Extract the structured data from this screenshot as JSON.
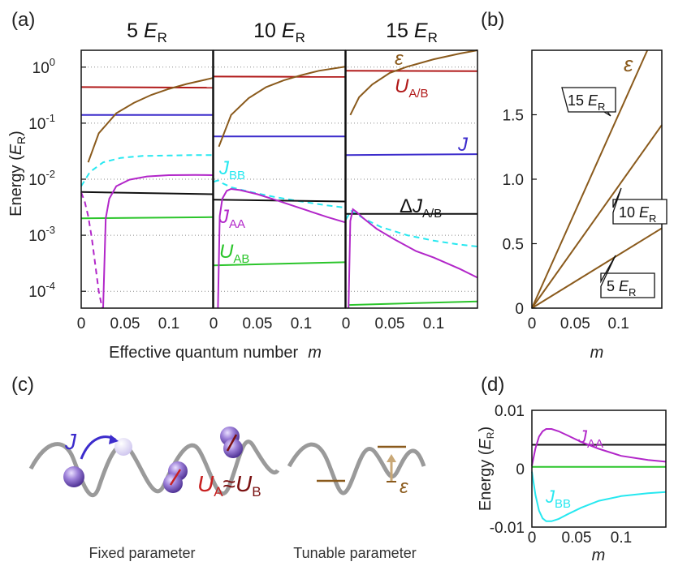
{
  "panel_labels": {
    "a": "(a)",
    "b": "(b)",
    "c": "(c)",
    "d": "(d)"
  },
  "chart_data": [
    {
      "id": "a",
      "type": "line",
      "ylabel": "Energy (E_R)",
      "ylabel_parts": [
        "Energy (",
        "E",
        "R",
        ")"
      ],
      "xlabel": "Effective quantum number  m",
      "xlabel_parts": [
        "Effective quantum number",
        "m"
      ],
      "yscale": "log",
      "ylim": [
        5e-05,
        2
      ],
      "xlim": [
        0,
        0.15
      ],
      "grid": "dotted horizontal",
      "ytick_labels": [
        {
          "mant": "10",
          "exp": "0",
          "v": 1
        },
        {
          "mant": "10",
          "exp": "-1",
          "v": 0.1
        },
        {
          "mant": "10",
          "exp": "-2",
          "v": 0.01
        },
        {
          "mant": "10",
          "exp": "-3",
          "v": 0.001
        },
        {
          "mant": "10",
          "exp": "-4",
          "v": 0.0001
        }
      ],
      "xticks": [
        {
          "label": "0",
          "v": 0
        },
        {
          "label": "0.05",
          "v": 0.05
        },
        {
          "label": "0.1",
          "v": 0.1
        }
      ],
      "columns": [
        {
          "title_num": "5",
          "title_var": "E",
          "title_sub": "R",
          "series": [
            {
              "key": "U_AB",
              "color": "#b11a1a",
              "x": [
                0,
                0.15
              ],
              "y": [
                0.44,
                0.43
              ]
            },
            {
              "key": "J",
              "color": "#3c2ccc",
              "x": [
                0,
                0.15
              ],
              "y": [
                0.14,
                0.14
              ]
            },
            {
              "key": "eps",
              "color": "#8a5a1c",
              "x": [
                0.008,
                0.02,
                0.04,
                0.06,
                0.08,
                0.1,
                0.12,
                0.15
              ],
              "y": [
                0.02,
                0.066,
                0.15,
                0.23,
                0.32,
                0.41,
                0.5,
                0.64
              ]
            },
            {
              "key": "J_BB",
              "color": "#27e8f0",
              "dash": true,
              "x": [
                0,
                0.01,
                0.025,
                0.045,
                0.07,
                0.1,
                0.13,
                0.15
              ],
              "y": [
                0.0075,
                0.0135,
                0.02,
                0.024,
                0.026,
                0.0265,
                0.027,
                0.027
              ]
            },
            {
              "key": "DJ",
              "color": "#111111",
              "x": [
                0,
                0.15
              ],
              "y": [
                0.0059,
                0.0054
              ]
            },
            {
              "key": "U_AB2",
              "color": "#2bc52b",
              "x": [
                0,
                0.15
              ],
              "y": [
                0.002,
                0.0021
              ]
            },
            {
              "key": "J_AA_dash",
              "color": "#b227c9",
              "dash": true,
              "x": [
                0,
                0.004,
                0.008,
                0.012,
                0.016,
                0.02,
                0.024
              ],
              "y": [
                0.0058,
                0.004,
                0.0022,
                0.0009,
                0.0003,
                0.0001,
                4e-05
              ]
            },
            {
              "key": "J_AA",
              "color": "#b227c9",
              "x": [
                0.025,
                0.028,
                0.032,
                0.04,
                0.055,
                0.075,
                0.1,
                0.13,
                0.15
              ],
              "y": [
                4e-05,
                0.002,
                0.0045,
                0.0075,
                0.0098,
                0.0112,
                0.0118,
                0.0119,
                0.0118
              ]
            }
          ]
        },
        {
          "title_num": "10",
          "title_var": "E",
          "title_sub": "R",
          "series": [
            {
              "key": "U_AB",
              "color": "#b11a1a",
              "x": [
                0,
                0.15
              ],
              "y": [
                0.68,
                0.67
              ]
            },
            {
              "key": "J",
              "color": "#3c2ccc",
              "x": [
                0,
                0.15
              ],
              "y": [
                0.058,
                0.058
              ]
            },
            {
              "key": "eps",
              "color": "#8a5a1c",
              "x": [
                0.006,
                0.02,
                0.04,
                0.06,
                0.08,
                0.1,
                0.12,
                0.15
              ],
              "y": [
                0.038,
                0.14,
                0.28,
                0.44,
                0.58,
                0.72,
                0.86,
                1.02
              ]
            },
            {
              "key": "J_BB",
              "color": "#27e8f0",
              "dash": true,
              "x": [
                0,
                0.005,
                0.01,
                0.02,
                0.04,
                0.07,
                0.1,
                0.13,
                0.15
              ],
              "y": [
                0.009,
                0.0095,
                0.0085,
                0.0072,
                0.006,
                0.0048,
                0.004,
                0.0034,
                0.0031
              ]
            },
            {
              "key": "DJ",
              "color": "#111111",
              "x": [
                0,
                0.15
              ],
              "y": [
                0.0043,
                0.004
              ]
            },
            {
              "key": "U_AB2",
              "color": "#2bc52b",
              "x": [
                0,
                0.15
              ],
              "y": [
                0.00029,
                0.00033
              ]
            },
            {
              "key": "J_AA",
              "color": "#b227c9",
              "x": [
                0.005,
                0.007,
                0.01,
                0.015,
                0.02,
                0.03,
                0.05,
                0.07,
                0.1,
                0.13,
                0.15
              ],
              "y": [
                4e-05,
                0.0022,
                0.0045,
                0.0062,
                0.0067,
                0.0064,
                0.0054,
                0.0043,
                0.003,
                0.0021,
                0.0017
              ]
            }
          ]
        },
        {
          "title_num": "15",
          "title_var": "E",
          "title_sub": "R",
          "series": [
            {
              "key": "U_AB",
              "color": "#b11a1a",
              "x": [
                0,
                0.15
              ],
              "y": [
                0.86,
                0.85
              ]
            },
            {
              "key": "J",
              "color": "#3c2ccc",
              "x": [
                0,
                0.15
              ],
              "y": [
                0.027,
                0.028
              ]
            },
            {
              "key": "eps",
              "color": "#8a5a1c",
              "x": [
                0.005,
                0.015,
                0.03,
                0.05,
                0.07,
                0.1,
                0.13,
                0.15
              ],
              "y": [
                0.14,
                0.29,
                0.49,
                0.79,
                1.02,
                1.38,
                1.75,
                2.0
              ]
            },
            {
              "key": "J_BB",
              "color": "#27e8f0",
              "dash": true,
              "x": [
                0,
                0.003,
                0.006,
                0.01,
                0.02,
                0.04,
                0.07,
                0.1,
                0.13,
                0.15
              ],
              "y": [
                0.0019,
                0.0023,
                0.0027,
                0.0025,
                0.002,
                0.0014,
                0.001,
                0.0008,
                0.00068,
                0.00063
              ]
            },
            {
              "key": "DJ",
              "color": "#111111",
              "x": [
                0,
                0.15
              ],
              "y": [
                0.0024,
                0.0024
              ]
            },
            {
              "key": "U_AB2",
              "color": "#2bc52b",
              "x": [
                0.003,
                0.15
              ],
              "y": [
                5.7e-05,
                6.6e-05
              ]
            },
            {
              "key": "J_AA",
              "color": "#b227c9",
              "x": [
                0.003,
                0.005,
                0.008,
                0.012,
                0.02,
                0.035,
                0.055,
                0.08,
                0.1,
                0.13,
                0.15
              ],
              "y": [
                5e-05,
                0.0018,
                0.0029,
                0.0026,
                0.002,
                0.0013,
                0.00085,
                0.00052,
                0.0004,
                0.00025,
                0.000175
              ]
            }
          ]
        }
      ],
      "series_labels": [
        {
          "key": "eps",
          "text": "ε",
          "color": "#8a5a1c"
        },
        {
          "key": "U",
          "text": "U",
          "sub": "A/B",
          "color": "#b11a1a"
        },
        {
          "key": "J",
          "text": "J",
          "color": "#3c2ccc"
        },
        {
          "key": "DJ",
          "text": "ΔJ",
          "sub": "A/B",
          "color": "#111111"
        },
        {
          "key": "JBB",
          "text": "J",
          "sub": "BB",
          "color": "#27e8f0"
        },
        {
          "key": "JAA",
          "text": "J",
          "sub": "AA",
          "color": "#b227c9"
        },
        {
          "key": "UAB",
          "text": "U",
          "sub": "AB",
          "color": "#2bc52b"
        }
      ]
    },
    {
      "id": "b",
      "type": "line",
      "xlabel": "m",
      "xlim": [
        0,
        0.15
      ],
      "ylim": [
        0,
        2.0
      ],
      "yticks": [
        {
          "label": "0",
          "v": 0
        },
        {
          "label": "0.5",
          "v": 0.5
        },
        {
          "label": "1.0",
          "v": 1.0
        },
        {
          "label": "1.5",
          "v": 1.5
        }
      ],
      "xticks": [
        {
          "label": "0",
          "v": 0
        },
        {
          "label": "0.05",
          "v": 0.05
        },
        {
          "label": "0.1",
          "v": 0.1
        }
      ],
      "color": "#8a5a1c",
      "series": [
        {
          "num": "15",
          "var": "E",
          "sub": "R",
          "x": [
            0,
            0.1333
          ],
          "y": [
            0,
            2.0
          ],
          "label_at": 0.09
        },
        {
          "num": "10",
          "var": "E",
          "sub": "R",
          "x": [
            0,
            0.15
          ],
          "y": [
            0,
            1.42
          ],
          "label_at": 0.1
        },
        {
          "num": "5",
          "var": "E",
          "sub": "R",
          "x": [
            0,
            0.15
          ],
          "y": [
            0,
            0.62
          ],
          "label_at": 0.1
        }
      ],
      "curve_label": {
        "text": "ε",
        "color": "#8a5a1c"
      }
    },
    {
      "id": "d",
      "type": "line",
      "ylabel_parts": [
        "Energy (",
        "E",
        "R",
        ")"
      ],
      "xlabel": "m",
      "xlim": [
        0,
        0.15
      ],
      "ylim": [
        -0.01,
        0.01
      ],
      "yticks": [
        {
          "label": "0.01",
          "v": 0.01
        },
        {
          "label": "0",
          "v": 0
        },
        {
          "label": "-0.01",
          "v": -0.01
        }
      ],
      "xticks": [
        {
          "label": "0",
          "v": 0
        },
        {
          "label": "0.05",
          "v": 0.05
        },
        {
          "label": "0.1",
          "v": 0.1
        }
      ],
      "series": [
        {
          "key": "DJ",
          "color": "#111111",
          "x": [
            0,
            0.15
          ],
          "y": [
            0.0041,
            0.0041
          ]
        },
        {
          "key": "U_AB",
          "color": "#2bc52b",
          "x": [
            0,
            0.15
          ],
          "y": [
            0.0003,
            0.0003
          ]
        },
        {
          "key": "J_AA",
          "color": "#b227c9",
          "x": [
            0,
            0.004,
            0.008,
            0.012,
            0.016,
            0.022,
            0.03,
            0.04,
            0.055,
            0.075,
            0.1,
            0.13,
            0.15
          ],
          "y": [
            0.0005,
            0.0035,
            0.0055,
            0.0064,
            0.0068,
            0.0068,
            0.0064,
            0.0057,
            0.0046,
            0.0034,
            0.0022,
            0.0015,
            0.0012
          ]
        },
        {
          "key": "J_BB",
          "color": "#27e8f0",
          "x": [
            0,
            0.004,
            0.008,
            0.012,
            0.016,
            0.022,
            0.03,
            0.04,
            0.055,
            0.075,
            0.1,
            0.13,
            0.15
          ],
          "y": [
            -0.0005,
            -0.0045,
            -0.0072,
            -0.0085,
            -0.009,
            -0.009,
            -0.0086,
            -0.0078,
            -0.0067,
            -0.0055,
            -0.0047,
            -0.0042,
            -0.004
          ]
        }
      ],
      "series_labels": [
        {
          "text": "J",
          "sub": "AA",
          "color": "#b227c9"
        },
        {
          "text": "J",
          "sub": "BB",
          "color": "#27e8f0"
        }
      ]
    }
  ],
  "illustration": {
    "J_label": "J",
    "U_label": [
      "U",
      "A",
      "≈",
      "U",
      "B"
    ],
    "eps_label": "ε",
    "caption_fixed": "Fixed parameter",
    "caption_tunable": "Tunable parameter"
  }
}
